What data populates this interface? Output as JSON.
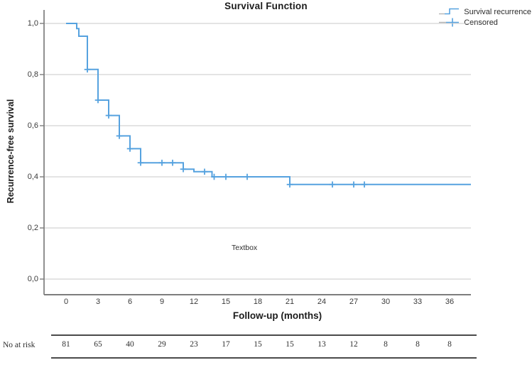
{
  "title": "Survival Function",
  "legend": {
    "items": [
      {
        "label": "Survival recurrence",
        "icon": "step-line-icon"
      },
      {
        "label": "Censored",
        "icon": "plus-marker-icon"
      }
    ]
  },
  "plot": {
    "textbox_label": "Textbox"
  },
  "x_axis": {
    "label": "Follow-up (months)",
    "ticks": [
      "0",
      "3",
      "6",
      "9",
      "12",
      "15",
      "18",
      "21",
      "24",
      "27",
      "30",
      "33",
      "36"
    ]
  },
  "y_axis": {
    "label": "Recurrence-free survival",
    "ticks": [
      "1,0",
      "0,8",
      "0,6",
      "0,4",
      "0,2",
      "0,0"
    ]
  },
  "risk_table": {
    "label": "No at risk",
    "values": [
      "81",
      "65",
      "40",
      "29",
      "23",
      "17",
      "15",
      "15",
      "13",
      "12",
      "8",
      "8",
      "8"
    ]
  },
  "colors": {
    "curve": "#56a2df",
    "grid": "#c9c9c9",
    "axis": "#7d7d7d",
    "text": "#262626",
    "risk_rule": "#4a4a4a"
  },
  "chart_data": {
    "type": "line",
    "subtype": "kaplan_meier_step",
    "title": "Survival Function",
    "xlabel": "Follow-up (months)",
    "ylabel": "Recurrence-free survival",
    "xlim": [
      -2,
      38
    ],
    "ylim": [
      -0.06,
      1.06
    ],
    "x_ticks": [
      0,
      3,
      6,
      9,
      12,
      15,
      18,
      21,
      24,
      27,
      30,
      33,
      36
    ],
    "y_ticks": [
      0.0,
      0.2,
      0.4,
      0.6,
      0.8,
      1.0
    ],
    "decimal_separator": ",",
    "grid": "horizontal",
    "legend_position": "top-right",
    "legend_entries": [
      "Survival recurrence",
      "Censored"
    ],
    "annotations": [
      {
        "text": "Textbox",
        "x": 17,
        "y": 0.12
      }
    ],
    "series": [
      {
        "name": "Survival recurrence",
        "steps": [
          [
            0,
            1.0
          ],
          [
            1,
            0.98
          ],
          [
            1.2,
            0.95
          ],
          [
            2,
            0.82
          ],
          [
            3,
            0.7
          ],
          [
            4,
            0.64
          ],
          [
            5,
            0.56
          ],
          [
            6,
            0.51
          ],
          [
            7,
            0.455
          ],
          [
            11,
            0.43
          ],
          [
            12,
            0.42
          ],
          [
            13.7,
            0.4
          ],
          [
            21,
            0.37
          ]
        ],
        "end_time": 38
      }
    ],
    "censored": [
      [
        2,
        0.82
      ],
      [
        3,
        0.7
      ],
      [
        4,
        0.64
      ],
      [
        5,
        0.56
      ],
      [
        6,
        0.51
      ],
      [
        7,
        0.455
      ],
      [
        9,
        0.455
      ],
      [
        10,
        0.455
      ],
      [
        11,
        0.43
      ],
      [
        13,
        0.42
      ],
      [
        13.9,
        0.4
      ],
      [
        15,
        0.4
      ],
      [
        17,
        0.4
      ],
      [
        21,
        0.37
      ],
      [
        25,
        0.37
      ],
      [
        27,
        0.37
      ],
      [
        28,
        0.37
      ]
    ],
    "at_risk": {
      "label": "No at risk",
      "times": [
        0,
        3,
        6,
        9,
        12,
        15,
        18,
        21,
        24,
        27,
        30,
        33,
        36
      ],
      "counts": [
        81,
        65,
        40,
        29,
        23,
        17,
        15,
        15,
        13,
        12,
        8,
        8,
        8
      ]
    }
  }
}
